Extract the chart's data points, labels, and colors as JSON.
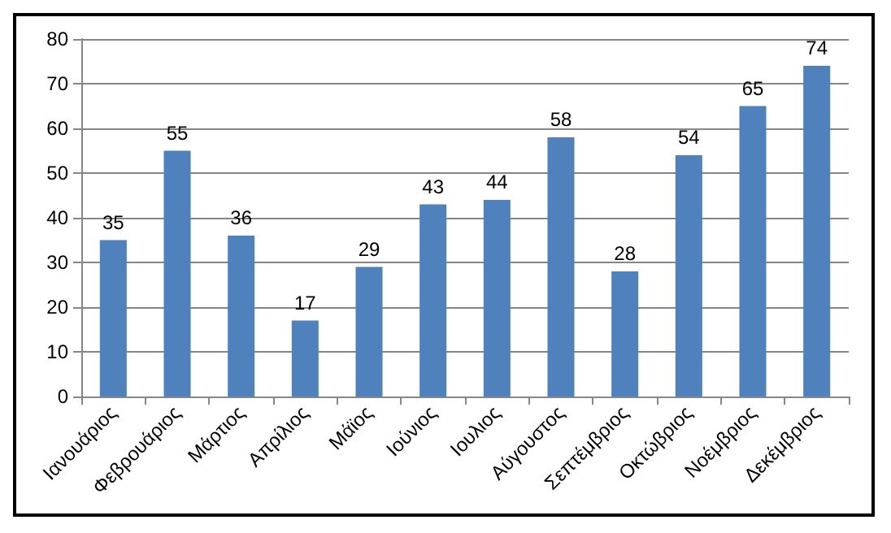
{
  "chart_data": {
    "type": "bar",
    "categories": [
      "Ιανουάριος",
      "Φεβρουάριος",
      "Μάρτιος",
      "Απρίλιος",
      "Μάϊος",
      "Ιούνιος",
      "Ιουλιος",
      "Αύγουστος",
      "Σεπτέμβριος",
      "Οκτώβριος",
      "Νοέμβριος",
      "Δεκέμβριος"
    ],
    "values": [
      35,
      55,
      36,
      17,
      29,
      43,
      44,
      58,
      28,
      54,
      65,
      74
    ],
    "color": "#4f81bd",
    "ylim": [
      0,
      80
    ],
    "yticks": [
      0,
      10,
      20,
      30,
      40,
      50,
      60,
      70,
      80
    ],
    "grid": "y",
    "data_labels": true
  }
}
